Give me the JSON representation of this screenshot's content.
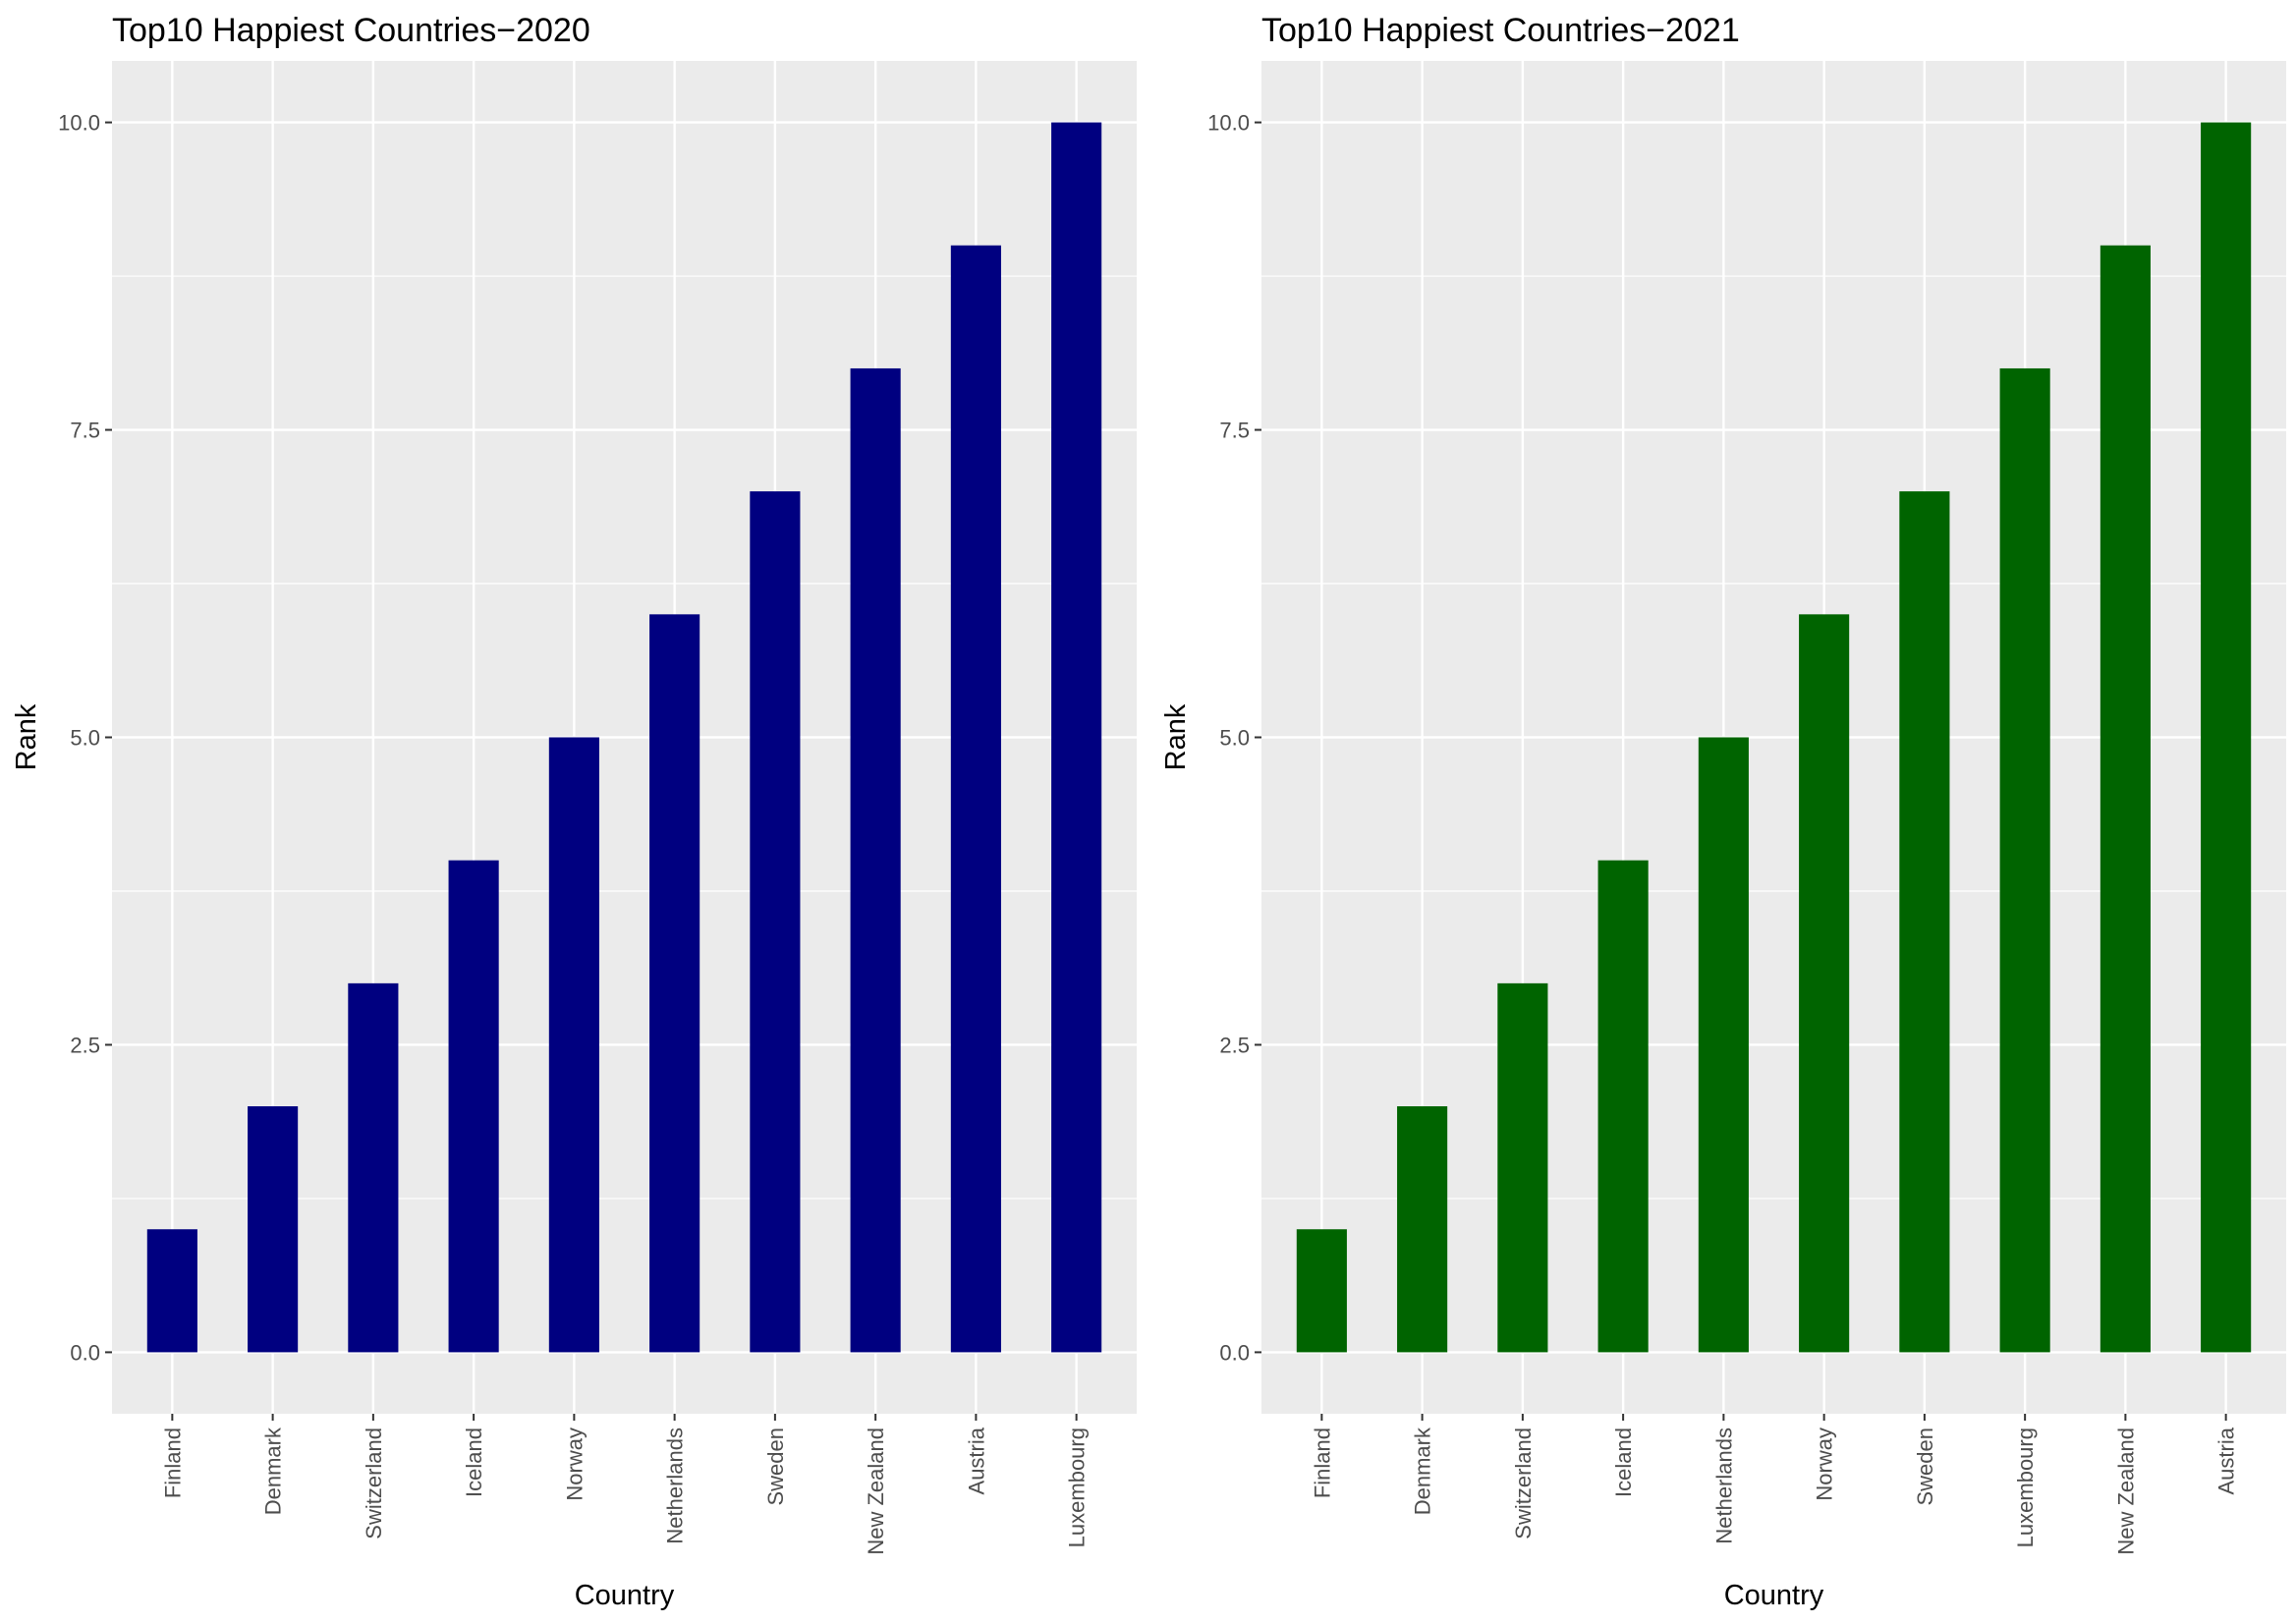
{
  "chart_data": [
    {
      "type": "bar",
      "title": "Top10 Happiest Countries−2020",
      "xlabel": "Country",
      "ylabel": "Rank",
      "categories": [
        "Finland",
        "Denmark",
        "Switzerland",
        "Iceland",
        "Norway",
        "Netherlands",
        "Sweden",
        "New Zealand",
        "Austria",
        "Luxembourg"
      ],
      "values": [
        1,
        2,
        3,
        4,
        5,
        6,
        7,
        8,
        9,
        10
      ],
      "ylim": [
        -0.5,
        10.5
      ],
      "yticks": [
        0,
        2.5,
        5,
        7.5,
        10
      ],
      "ytick_labels": [
        "0.0",
        "2.5",
        "5.0",
        "7.5",
        "10.0"
      ],
      "bar_color": "#000080",
      "panel_color": "#ebebeb",
      "grid_color": "#ffffff",
      "grid": true
    },
    {
      "type": "bar",
      "title": "Top10 Happiest Countries−2021",
      "xlabel": "Country",
      "ylabel": "Rank",
      "categories": [
        "Finland",
        "Denmark",
        "Switzerland",
        "Iceland",
        "Netherlands",
        "Norway",
        "Sweden",
        "Luxembourg",
        "New Zealand",
        "Austria"
      ],
      "values": [
        1,
        2,
        3,
        4,
        5,
        6,
        7,
        8,
        9,
        10
      ],
      "ylim": [
        -0.5,
        10.5
      ],
      "yticks": [
        0,
        2.5,
        5,
        7.5,
        10
      ],
      "ytick_labels": [
        "0.0",
        "2.5",
        "5.0",
        "7.5",
        "10.0"
      ],
      "bar_color": "#006400",
      "panel_color": "#ebebeb",
      "grid_color": "#ffffff",
      "grid": true
    }
  ]
}
